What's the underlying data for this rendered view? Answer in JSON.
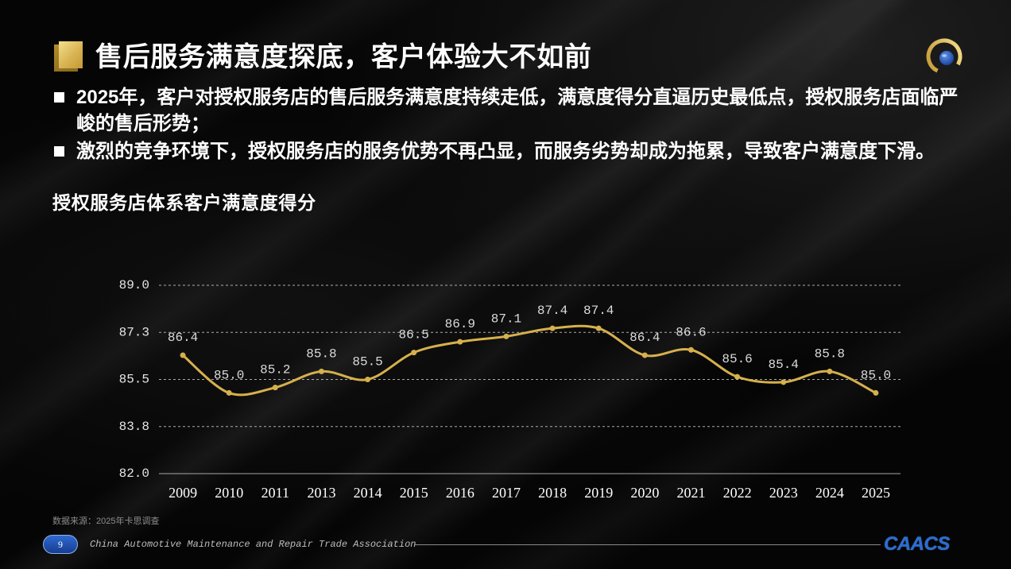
{
  "slide": {
    "title": "售后服务满意度探底，客户体验大不如前",
    "bullets": [
      "2025年，客户对授权服务店的售后服务满意度持续走低，满意度得分直逼历史最低点，授权服务店面临严峻的售后形势；",
      "激烈的竞争环境下，授权服务店的服务优势不再凸显，而服务劣势却成为拖累，导致客户满意度下滑。"
    ],
    "source_note": "数据来源：2025年卡思调查"
  },
  "footer": {
    "page_number": "9",
    "organization": "China Automotive Maintenance and Repair Trade Association",
    "logo_text": "CAACS"
  },
  "icons": {
    "title_marker": "gold-square-icon",
    "header_emblem": "association-emblem-icon",
    "bullet": "square-bullet-icon"
  },
  "colors": {
    "background": "#050505",
    "accent_gold": "#d6b04c",
    "text": "#ffffff",
    "muted_text": "#8c8c8c",
    "brand_blue": "#2a6dd4"
  },
  "chart_data": {
    "type": "line",
    "title": "授权服务店体系客户满意度得分",
    "categories": [
      "2009",
      "2010",
      "2011",
      "2013",
      "2014",
      "2015",
      "2016",
      "2017",
      "2018",
      "2019",
      "2020",
      "2021",
      "2022",
      "2023",
      "2024",
      "2025"
    ],
    "series": [
      {
        "values": [
          86.4,
          85.0,
          85.2,
          85.8,
          85.5,
          86.5,
          86.9,
          87.1,
          87.4,
          87.4,
          86.4,
          86.6,
          85.6,
          85.4,
          85.8,
          85.0
        ],
        "labels": [
          "86.4",
          "85.0",
          "85.2",
          "85.8",
          "85.5",
          "86.5",
          "86.9",
          "87.1",
          "87.4",
          "87.4",
          "86.4",
          "86.6",
          "85.6",
          "85.4",
          "85.8",
          "85.0"
        ]
      }
    ],
    "ylim": [
      82,
      89
    ],
    "yticks": [
      82,
      83.75,
      85.5,
      87.25,
      89
    ],
    "ytick_labels": [
      "82.0",
      "83.8",
      "85.5",
      "87.3",
      "89.0"
    ],
    "grid": true,
    "smooth": true,
    "markers": true,
    "legend": false
  }
}
